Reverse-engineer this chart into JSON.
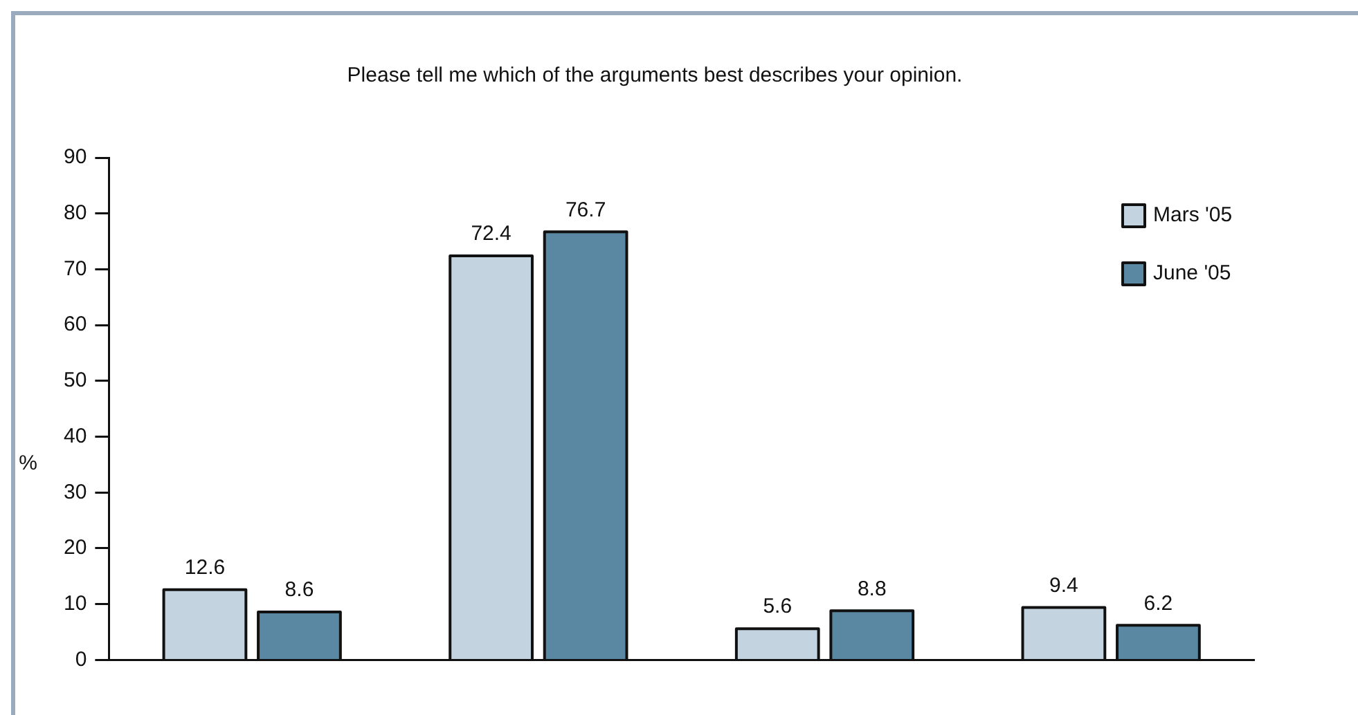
{
  "chart_data": {
    "type": "bar",
    "title": "Please tell me which of the arguments best describes your opinion.",
    "ylabel": "%",
    "categories": [
      null,
      null,
      null,
      null
    ],
    "series": [
      {
        "name": "Mars '05",
        "color": "#c3d3df",
        "values": [
          12.6,
          72.4,
          5.6,
          9.4
        ]
      },
      {
        "name": "June '05",
        "color": "#5a87a1",
        "values": [
          8.6,
          76.7,
          8.8,
          6.2
        ]
      }
    ],
    "ylim": [
      0,
      90
    ],
    "yticks": [
      0,
      10,
      20,
      30,
      40,
      50,
      60,
      70,
      80,
      90
    ],
    "data_labels": true,
    "legend": "top right"
  }
}
